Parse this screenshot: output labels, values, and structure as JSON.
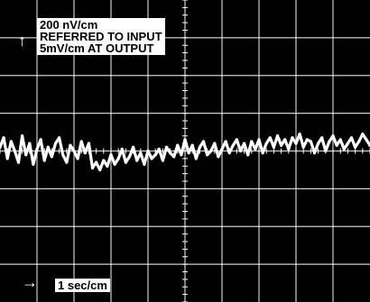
{
  "chart_data": {
    "type": "line",
    "title": "",
    "annotations": {
      "vertical_scale": "200 nV/cm",
      "referred_line": "REFERRED TO INPUT",
      "output_scale": "5mV/cm AT OUTPUT",
      "time_scale": "1 sec/cm"
    },
    "grid": {
      "major_divisions_x": 10,
      "major_divisions_y": 8,
      "minor_ticks_per_division": 5,
      "visible": true
    },
    "xlim": [
      0,
      10
    ],
    "ylim": [
      -4,
      4
    ],
    "series": [
      {
        "x": [
          0.0,
          0.1,
          0.2,
          0.3,
          0.4,
          0.5,
          0.6,
          0.7,
          0.8,
          0.9,
          1.0,
          1.1,
          1.2,
          1.3,
          1.4,
          1.5,
          1.6,
          1.7,
          1.8,
          1.9,
          2.0,
          2.1,
          2.2,
          2.3,
          2.4,
          2.5,
          2.6,
          2.7,
          2.8,
          2.9,
          3.0,
          3.1,
          3.2,
          3.3,
          3.4,
          3.5,
          3.6,
          3.7,
          3.8,
          3.9,
          4.0,
          4.1,
          4.2,
          4.3,
          4.4,
          4.5,
          4.6,
          4.7,
          4.8,
          4.9,
          5.0,
          5.1,
          5.2,
          5.3,
          5.4,
          5.5,
          5.6,
          5.7,
          5.8,
          5.9,
          6.0,
          6.1,
          6.2,
          6.3,
          6.4,
          6.5,
          6.6,
          6.7,
          6.8,
          6.9,
          7.0,
          7.1,
          7.2,
          7.3,
          7.4,
          7.5,
          7.6,
          7.7,
          7.8,
          7.9,
          8.0,
          8.1,
          8.2,
          8.3,
          8.4,
          8.5,
          8.6,
          8.7,
          8.8,
          8.9,
          9.0,
          9.1,
          9.2,
          9.3,
          9.4,
          9.5,
          9.6,
          9.7,
          9.8,
          9.9,
          10.0
        ],
        "y": [
          0.1,
          0.35,
          -0.2,
          0.25,
          0.0,
          -0.3,
          0.4,
          -0.1,
          0.2,
          -0.35,
          0.05,
          0.3,
          -0.25,
          0.1,
          -0.15,
          0.2,
          0.35,
          -0.1,
          -0.3,
          0.15,
          0.0,
          -0.2,
          0.25,
          -0.05,
          0.2,
          -0.45,
          -0.3,
          -0.5,
          -0.25,
          -0.4,
          -0.1,
          -0.35,
          -0.2,
          0.05,
          -0.3,
          -0.15,
          0.1,
          -0.25,
          -0.05,
          -0.35,
          0.0,
          -0.2,
          -0.1,
          0.05,
          -0.25,
          0.1,
          -0.05,
          -0.15,
          0.15,
          -0.1,
          0.3,
          -0.05,
          0.15,
          -0.2,
          0.1,
          0.25,
          -0.1,
          0.0,
          0.2,
          -0.15,
          0.05,
          0.25,
          -0.05,
          0.15,
          0.3,
          0.0,
          0.2,
          -0.1,
          0.25,
          0.05,
          0.3,
          -0.05,
          0.2,
          0.35,
          0.1,
          0.4,
          0.15,
          0.3,
          0.05,
          0.35,
          0.2,
          0.45,
          0.1,
          0.3,
          0.25,
          -0.05,
          0.2,
          0.35,
          0.0,
          0.25,
          0.4,
          0.15,
          0.3,
          0.05,
          0.2,
          0.35,
          0.1,
          0.25,
          0.45,
          0.3,
          0.15
        ]
      }
    ],
    "trace_color": "#ffffff",
    "grid_color": "#ffffff",
    "background_color": "#000000"
  }
}
